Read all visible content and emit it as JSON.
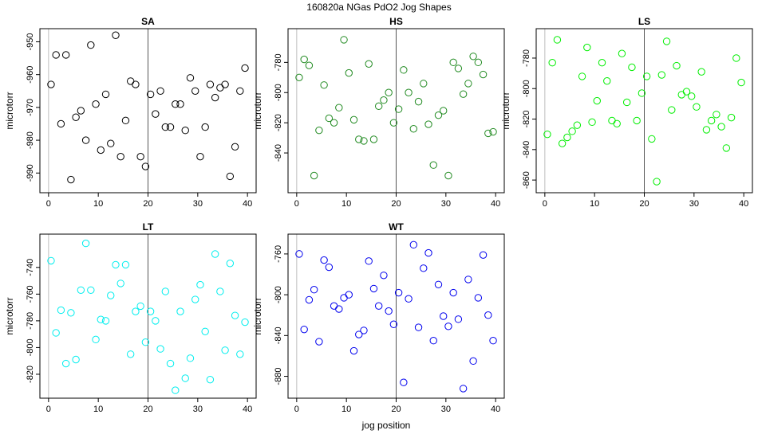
{
  "figure": {
    "title": "160820a   NGas PdO2 Jog Shapes",
    "xlabel": "jog position"
  },
  "chart_data": [
    {
      "type": "scatter",
      "title": "SA",
      "ylabel": "microtorr",
      "color": "#000000",
      "xlim": [
        0,
        40
      ],
      "ylim": [
        -994,
        -948
      ],
      "vline_x": 20,
      "xbase_x": 0,
      "xticks": [
        0,
        10,
        20,
        30,
        40
      ],
      "yticks": [
        -950,
        -960,
        -970,
        -980,
        -990
      ],
      "points": [
        {
          "x": 0.5,
          "y": -963
        },
        {
          "x": 1.5,
          "y": -954
        },
        {
          "x": 2.5,
          "y": -975
        },
        {
          "x": 3.5,
          "y": -954
        },
        {
          "x": 4.5,
          "y": -992
        },
        {
          "x": 5.5,
          "y": -973
        },
        {
          "x": 6.5,
          "y": -971
        },
        {
          "x": 7.5,
          "y": -980
        },
        {
          "x": 8.5,
          "y": -951
        },
        {
          "x": 9.5,
          "y": -969
        },
        {
          "x": 10.5,
          "y": -983
        },
        {
          "x": 11.5,
          "y": -966
        },
        {
          "x": 12.5,
          "y": -981
        },
        {
          "x": 13.5,
          "y": -948
        },
        {
          "x": 14.5,
          "y": -985
        },
        {
          "x": 15.5,
          "y": -974
        },
        {
          "x": 16.5,
          "y": -962
        },
        {
          "x": 17.5,
          "y": -963
        },
        {
          "x": 18.5,
          "y": -985
        },
        {
          "x": 19.5,
          "y": -988
        },
        {
          "x": 20.5,
          "y": -966
        },
        {
          "x": 21.5,
          "y": -972
        },
        {
          "x": 22.5,
          "y": -965
        },
        {
          "x": 23.5,
          "y": -976
        },
        {
          "x": 24.5,
          "y": -976
        },
        {
          "x": 25.5,
          "y": -969
        },
        {
          "x": 26.5,
          "y": -969
        },
        {
          "x": 27.5,
          "y": -977
        },
        {
          "x": 28.5,
          "y": -961
        },
        {
          "x": 29.5,
          "y": -965
        },
        {
          "x": 30.5,
          "y": -985
        },
        {
          "x": 31.5,
          "y": -976
        },
        {
          "x": 32.5,
          "y": -963
        },
        {
          "x": 33.5,
          "y": -967
        },
        {
          "x": 34.5,
          "y": -964
        },
        {
          "x": 35.5,
          "y": -963
        },
        {
          "x": 36.5,
          "y": -991
        },
        {
          "x": 37.5,
          "y": -982
        },
        {
          "x": 38.5,
          "y": -965
        },
        {
          "x": 39.5,
          "y": -958
        }
      ]
    },
    {
      "type": "scatter",
      "title": "HS",
      "ylabel": "microtorr",
      "color": "#228B22",
      "xlim": [
        0,
        40
      ],
      "ylim": [
        -862,
        -762
      ],
      "vline_x": 20,
      "xbase_x": 0,
      "xticks": [
        0,
        10,
        20,
        30,
        40
      ],
      "yticks": [
        -780,
        -800,
        -820,
        -840
      ],
      "points": [
        {
          "x": 0.5,
          "y": -790
        },
        {
          "x": 1.5,
          "y": -778
        },
        {
          "x": 2.5,
          "y": -782
        },
        {
          "x": 3.5,
          "y": -855
        },
        {
          "x": 4.5,
          "y": -825
        },
        {
          "x": 5.5,
          "y": -795
        },
        {
          "x": 6.5,
          "y": -817
        },
        {
          "x": 7.5,
          "y": -820
        },
        {
          "x": 8.5,
          "y": -810
        },
        {
          "x": 9.5,
          "y": -765
        },
        {
          "x": 10.5,
          "y": -787
        },
        {
          "x": 11.5,
          "y": -818
        },
        {
          "x": 12.5,
          "y": -831
        },
        {
          "x": 13.5,
          "y": -832
        },
        {
          "x": 14.5,
          "y": -781
        },
        {
          "x": 15.5,
          "y": -831
        },
        {
          "x": 16.5,
          "y": -809
        },
        {
          "x": 17.5,
          "y": -805
        },
        {
          "x": 18.5,
          "y": -800
        },
        {
          "x": 19.5,
          "y": -820
        },
        {
          "x": 20.5,
          "y": -811
        },
        {
          "x": 21.5,
          "y": -785
        },
        {
          "x": 22.5,
          "y": -800
        },
        {
          "x": 23.5,
          "y": -824
        },
        {
          "x": 24.5,
          "y": -806
        },
        {
          "x": 25.5,
          "y": -794
        },
        {
          "x": 26.5,
          "y": -821
        },
        {
          "x": 27.5,
          "y": -848
        },
        {
          "x": 28.5,
          "y": -815
        },
        {
          "x": 29.5,
          "y": -812
        },
        {
          "x": 30.5,
          "y": -855
        },
        {
          "x": 31.5,
          "y": -780
        },
        {
          "x": 32.5,
          "y": -784
        },
        {
          "x": 33.5,
          "y": -801
        },
        {
          "x": 34.5,
          "y": -794
        },
        {
          "x": 35.5,
          "y": -776
        },
        {
          "x": 36.5,
          "y": -780
        },
        {
          "x": 37.5,
          "y": -788
        },
        {
          "x": 38.5,
          "y": -827
        },
        {
          "x": 39.5,
          "y": -826
        }
      ]
    },
    {
      "type": "scatter",
      "title": "LS",
      "ylabel": "microtorr",
      "color": "#00EE00",
      "xlim": [
        0,
        40
      ],
      "ylim": [
        -864,
        -765
      ],
      "vline_x": 20,
      "xbase_x": 0,
      "xticks": [
        0,
        10,
        20,
        30,
        40
      ],
      "yticks": [
        -780,
        -800,
        -820,
        -840,
        -860
      ],
      "points": [
        {
          "x": 0.5,
          "y": -830
        },
        {
          "x": 1.5,
          "y": -783
        },
        {
          "x": 2.5,
          "y": -768
        },
        {
          "x": 3.5,
          "y": -836
        },
        {
          "x": 4.5,
          "y": -832
        },
        {
          "x": 5.5,
          "y": -828
        },
        {
          "x": 6.5,
          "y": -824
        },
        {
          "x": 7.5,
          "y": -792
        },
        {
          "x": 8.5,
          "y": -773
        },
        {
          "x": 9.5,
          "y": -822
        },
        {
          "x": 10.5,
          "y": -808
        },
        {
          "x": 11.5,
          "y": -783
        },
        {
          "x": 12.5,
          "y": -795
        },
        {
          "x": 13.5,
          "y": -821
        },
        {
          "x": 14.5,
          "y": -823
        },
        {
          "x": 15.5,
          "y": -777
        },
        {
          "x": 16.5,
          "y": -809
        },
        {
          "x": 17.5,
          "y": -786
        },
        {
          "x": 18.5,
          "y": -821
        },
        {
          "x": 19.5,
          "y": -803
        },
        {
          "x": 20.5,
          "y": -792
        },
        {
          "x": 21.5,
          "y": -833
        },
        {
          "x": 22.5,
          "y": -861
        },
        {
          "x": 23.5,
          "y": -791
        },
        {
          "x": 24.5,
          "y": -769
        },
        {
          "x": 25.5,
          "y": -814
        },
        {
          "x": 26.5,
          "y": -785
        },
        {
          "x": 27.5,
          "y": -804
        },
        {
          "x": 28.5,
          "y": -802
        },
        {
          "x": 29.5,
          "y": -805
        },
        {
          "x": 30.5,
          "y": -812
        },
        {
          "x": 31.5,
          "y": -789
        },
        {
          "x": 32.5,
          "y": -827
        },
        {
          "x": 33.5,
          "y": -821
        },
        {
          "x": 34.5,
          "y": -817
        },
        {
          "x": 35.5,
          "y": -825
        },
        {
          "x": 36.5,
          "y": -839
        },
        {
          "x": 37.5,
          "y": -819
        },
        {
          "x": 38.5,
          "y": -780
        },
        {
          "x": 39.5,
          "y": -796
        }
      ]
    },
    {
      "type": "scatter",
      "title": "LT",
      "ylabel": "microtorr",
      "color": "#00EEEE",
      "xlim": [
        0,
        40
      ],
      "ylim": [
        -833,
        -720
      ],
      "vline_x": 20,
      "xbase_x": 0,
      "xticks": [
        0,
        10,
        20,
        30,
        40
      ],
      "yticks": [
        -740,
        -760,
        -780,
        -800,
        -820
      ],
      "points": [
        {
          "x": 0.5,
          "y": -735
        },
        {
          "x": 1.5,
          "y": -789
        },
        {
          "x": 2.5,
          "y": -772
        },
        {
          "x": 3.5,
          "y": -812
        },
        {
          "x": 4.5,
          "y": -774
        },
        {
          "x": 5.5,
          "y": -809
        },
        {
          "x": 6.5,
          "y": -757
        },
        {
          "x": 7.5,
          "y": -722
        },
        {
          "x": 8.5,
          "y": -757
        },
        {
          "x": 9.5,
          "y": -794
        },
        {
          "x": 10.5,
          "y": -779
        },
        {
          "x": 11.5,
          "y": -780
        },
        {
          "x": 12.5,
          "y": -761
        },
        {
          "x": 13.5,
          "y": -738
        },
        {
          "x": 14.5,
          "y": -752
        },
        {
          "x": 15.5,
          "y": -738
        },
        {
          "x": 16.5,
          "y": -805
        },
        {
          "x": 17.5,
          "y": -773
        },
        {
          "x": 18.5,
          "y": -769
        },
        {
          "x": 19.5,
          "y": -796
        },
        {
          "x": 20.5,
          "y": -773
        },
        {
          "x": 21.5,
          "y": -780
        },
        {
          "x": 22.5,
          "y": -801
        },
        {
          "x": 23.5,
          "y": -758
        },
        {
          "x": 24.5,
          "y": -812
        },
        {
          "x": 25.5,
          "y": -832
        },
        {
          "x": 26.5,
          "y": -773
        },
        {
          "x": 27.5,
          "y": -823
        },
        {
          "x": 28.5,
          "y": -808
        },
        {
          "x": 29.5,
          "y": -764
        },
        {
          "x": 30.5,
          "y": -753
        },
        {
          "x": 31.5,
          "y": -788
        },
        {
          "x": 32.5,
          "y": -824
        },
        {
          "x": 33.5,
          "y": -730
        },
        {
          "x": 34.5,
          "y": -758
        },
        {
          "x": 35.5,
          "y": -802
        },
        {
          "x": 36.5,
          "y": -737
        },
        {
          "x": 37.5,
          "y": -776
        },
        {
          "x": 38.5,
          "y": -805
        },
        {
          "x": 39.5,
          "y": -781
        }
      ]
    },
    {
      "type": "scatter",
      "title": "WT",
      "ylabel": "microtorr",
      "color": "#0000EE",
      "xlim": [
        0,
        40
      ],
      "ylim": [
        -895,
        -747
      ],
      "vline_x": 20,
      "xbase_x": 0,
      "xticks": [
        0,
        10,
        20,
        30,
        40
      ],
      "yticks": [
        -760,
        -800,
        -840,
        -880
      ],
      "points": [
        {
          "x": 0.5,
          "y": -760
        },
        {
          "x": 1.5,
          "y": -834
        },
        {
          "x": 2.5,
          "y": -805
        },
        {
          "x": 3.5,
          "y": -795
        },
        {
          "x": 4.5,
          "y": -846
        },
        {
          "x": 5.5,
          "y": -766
        },
        {
          "x": 6.5,
          "y": -773
        },
        {
          "x": 7.5,
          "y": -811
        },
        {
          "x": 8.5,
          "y": -814
        },
        {
          "x": 9.5,
          "y": -803
        },
        {
          "x": 10.5,
          "y": -800
        },
        {
          "x": 11.5,
          "y": -855
        },
        {
          "x": 12.5,
          "y": -839
        },
        {
          "x": 13.5,
          "y": -835
        },
        {
          "x": 14.5,
          "y": -767
        },
        {
          "x": 15.5,
          "y": -794
        },
        {
          "x": 16.5,
          "y": -811
        },
        {
          "x": 17.5,
          "y": -781
        },
        {
          "x": 18.5,
          "y": -816
        },
        {
          "x": 19.5,
          "y": -829
        },
        {
          "x": 20.5,
          "y": -798
        },
        {
          "x": 21.5,
          "y": -886
        },
        {
          "x": 22.5,
          "y": -804
        },
        {
          "x": 23.5,
          "y": -751
        },
        {
          "x": 24.5,
          "y": -832
        },
        {
          "x": 25.5,
          "y": -774
        },
        {
          "x": 26.5,
          "y": -759
        },
        {
          "x": 27.5,
          "y": -845
        },
        {
          "x": 28.5,
          "y": -790
        },
        {
          "x": 29.5,
          "y": -821
        },
        {
          "x": 30.5,
          "y": -831
        },
        {
          "x": 31.5,
          "y": -798
        },
        {
          "x": 32.5,
          "y": -824
        },
        {
          "x": 33.5,
          "y": -892
        },
        {
          "x": 34.5,
          "y": -785
        },
        {
          "x": 35.5,
          "y": -865
        },
        {
          "x": 36.5,
          "y": -803
        },
        {
          "x": 37.5,
          "y": -761
        },
        {
          "x": 38.5,
          "y": -820
        },
        {
          "x": 39.5,
          "y": -845
        }
      ]
    }
  ]
}
